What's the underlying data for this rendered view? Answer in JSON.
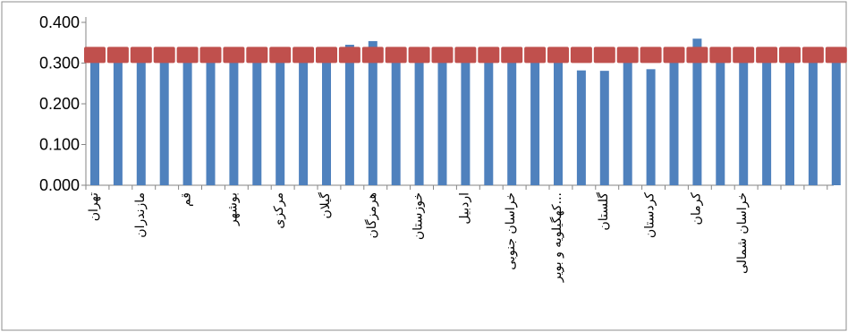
{
  "chart_data": {
    "type": "bar",
    "title": "",
    "xlabel": "",
    "ylabel": "",
    "ylim": [
      0,
      0.4
    ],
    "yticks": [
      "0.000",
      "0.100",
      "0.200",
      "0.300",
      "0.400"
    ],
    "grid": false,
    "legend": "none",
    "labeled_categories": [
      "تهران",
      "مازندران",
      "قم",
      "بوشهر",
      "مرکزی",
      "گیلان",
      "هرمزگان",
      "خوزستان",
      "اردبیل",
      "خراسان جنوبی",
      "کهگیلویه و بویر...",
      "گلستان",
      "کردستان",
      "کرمان",
      "خراسان شمالی"
    ],
    "series": [
      {
        "type": "bar",
        "color": "#4f81bd",
        "values": [
          0.32,
          0.32,
          0.32,
          0.32,
          0.32,
          0.32,
          0.32,
          0.32,
          0.32,
          0.32,
          0.32,
          0.345,
          0.354,
          0.32,
          0.32,
          0.32,
          0.32,
          0.32,
          0.32,
          0.32,
          0.32,
          0.282,
          0.281,
          0.32,
          0.285,
          0.32,
          0.36,
          0.32,
          0.32,
          0.32,
          0.32,
          0.32,
          0.32,
          0.32,
          0.354
        ]
      },
      {
        "type": "marker-line",
        "color": "#c0504d",
        "values": [
          0.32,
          0.32,
          0.32,
          0.32,
          0.32,
          0.32,
          0.32,
          0.32,
          0.32,
          0.32,
          0.32,
          0.32,
          0.32,
          0.32,
          0.32,
          0.32,
          0.32,
          0.32,
          0.32,
          0.32,
          0.32,
          0.32,
          0.32,
          0.32,
          0.32,
          0.32,
          0.32,
          0.32,
          0.32,
          0.32,
          0.32,
          0.32,
          0.32,
          0.32,
          0.32,
          0.32,
          0.32
        ]
      }
    ]
  }
}
